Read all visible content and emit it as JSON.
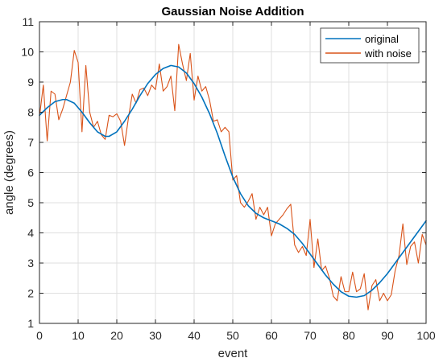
{
  "chart_data": {
    "type": "line",
    "title": "Gaussian Noise Addition",
    "xlabel": "event",
    "ylabel": "angle (degrees)",
    "xlim": [
      0,
      100
    ],
    "ylim": [
      1,
      11
    ],
    "xticks": [
      0,
      10,
      20,
      30,
      40,
      50,
      60,
      70,
      80,
      90,
      100
    ],
    "yticks": [
      1,
      2,
      3,
      4,
      5,
      6,
      7,
      8,
      9,
      10,
      11
    ],
    "grid": true,
    "legend_position": "top-right",
    "series": [
      {
        "name": "original",
        "color": "#0072BD",
        "x": [
          0,
          2,
          4,
          6,
          7,
          9,
          11,
          13,
          15,
          17,
          18,
          20,
          22,
          24,
          26,
          28,
          30,
          32,
          34,
          36,
          38,
          40,
          42,
          44,
          46,
          48,
          50,
          52,
          54,
          56,
          58,
          60,
          62,
          64,
          66,
          68,
          70,
          72,
          74,
          76,
          78,
          80,
          82,
          84,
          86,
          88,
          90,
          92,
          94,
          96,
          98,
          100
        ],
        "y": [
          7.9,
          8.15,
          8.35,
          8.42,
          8.42,
          8.3,
          8.0,
          7.65,
          7.35,
          7.2,
          7.2,
          7.35,
          7.7,
          8.1,
          8.55,
          8.95,
          9.25,
          9.45,
          9.55,
          9.5,
          9.3,
          8.95,
          8.5,
          7.95,
          7.3,
          6.55,
          5.85,
          5.3,
          4.9,
          4.65,
          4.5,
          4.4,
          4.3,
          4.15,
          3.95,
          3.65,
          3.3,
          2.95,
          2.6,
          2.3,
          2.05,
          1.9,
          1.87,
          1.92,
          2.1,
          2.35,
          2.65,
          3.0,
          3.35,
          3.7,
          4.05,
          4.4
        ]
      },
      {
        "name": "with noise",
        "color": "#D95319",
        "x": [
          0,
          1,
          2,
          3,
          4,
          5,
          6,
          7,
          8,
          9,
          10,
          11,
          12,
          13,
          14,
          15,
          16,
          17,
          18,
          19,
          20,
          21,
          22,
          23,
          24,
          25,
          26,
          27,
          28,
          29,
          30,
          31,
          32,
          33,
          34,
          35,
          36,
          37,
          38,
          39,
          40,
          41,
          42,
          43,
          44,
          45,
          46,
          47,
          48,
          49,
          50,
          51,
          52,
          53,
          54,
          55,
          56,
          57,
          58,
          59,
          60,
          61,
          62,
          63,
          64,
          65,
          66,
          67,
          68,
          69,
          70,
          71,
          72,
          73,
          74,
          75,
          76,
          77,
          78,
          79,
          80,
          81,
          82,
          83,
          84,
          85,
          86,
          87,
          88,
          89,
          90,
          91,
          92,
          93,
          94,
          95,
          96,
          97,
          98,
          99,
          100
        ],
        "y": [
          7.85,
          8.9,
          7.05,
          8.7,
          8.6,
          7.75,
          8.1,
          8.55,
          9.0,
          10.05,
          9.65,
          7.35,
          9.55,
          8.0,
          7.5,
          7.7,
          7.25,
          7.1,
          7.9,
          7.85,
          7.95,
          7.7,
          6.9,
          7.8,
          8.6,
          8.3,
          8.75,
          8.8,
          8.55,
          8.9,
          8.75,
          9.6,
          8.7,
          8.85,
          9.2,
          8.05,
          10.25,
          9.6,
          9.05,
          9.95,
          8.4,
          9.2,
          8.7,
          8.85,
          8.4,
          7.7,
          7.75,
          7.35,
          7.5,
          7.35,
          5.75,
          5.9,
          5.0,
          4.85,
          5.05,
          5.3,
          4.45,
          4.85,
          4.6,
          4.85,
          3.9,
          4.3,
          4.45,
          4.6,
          4.8,
          4.95,
          3.6,
          3.35,
          3.55,
          3.25,
          4.45,
          2.85,
          3.8,
          2.75,
          2.9,
          2.5,
          1.9,
          1.75,
          2.55,
          2.05,
          2.05,
          2.7,
          2.05,
          2.15,
          2.65,
          1.45,
          2.25,
          2.45,
          1.75,
          2.0,
          1.75,
          1.95,
          2.75,
          3.25,
          4.3,
          2.95,
          3.55,
          3.7,
          3.0,
          3.95,
          3.6
        ]
      }
    ]
  }
}
